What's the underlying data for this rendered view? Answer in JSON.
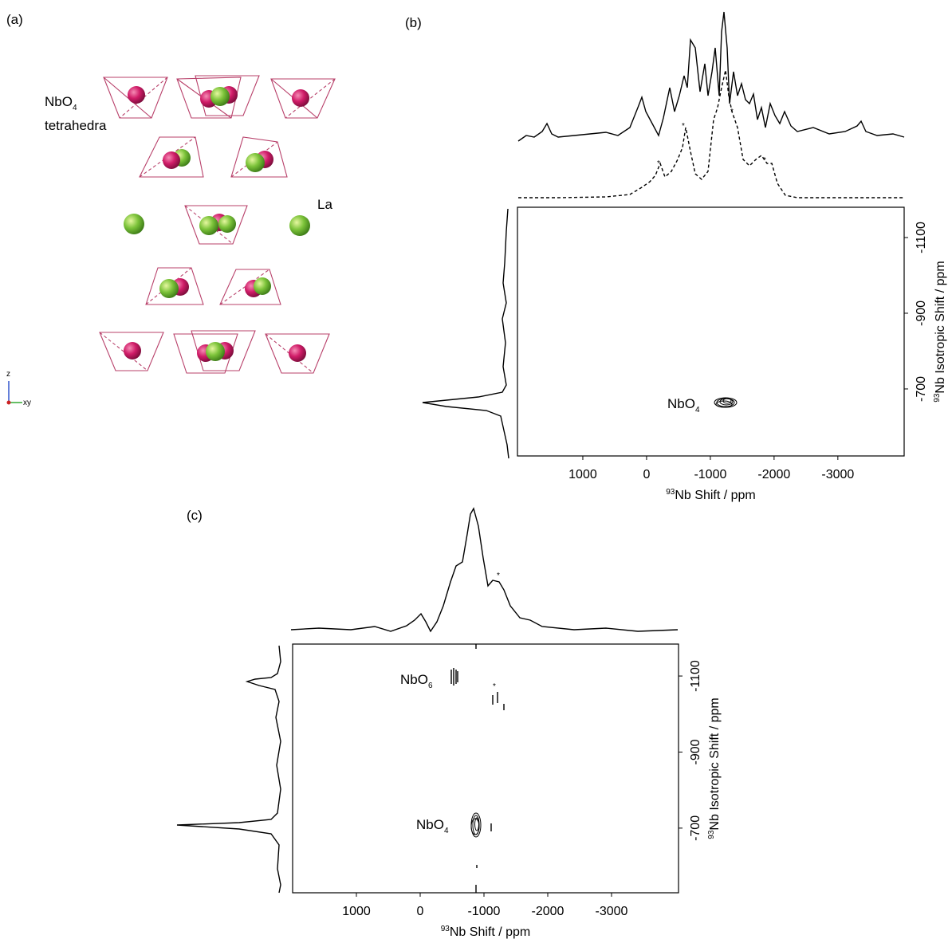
{
  "panel_a": {
    "label": "(a)",
    "tetra_label": {
      "text": "NbO",
      "sub": "4",
      "line2": "tetrahedra"
    },
    "la_label": "La",
    "axis_z": "z",
    "axis_xy": "xy"
  },
  "panel_b": {
    "label": "(b)",
    "x_label": {
      "sup": "93",
      "text": "Nb Shift / ppm"
    },
    "y_label": {
      "sup": "93",
      "text": "Nb Isotropic Shift / ppm"
    },
    "xlim": [
      2025,
      -4040
    ],
    "xticks": [
      1000,
      0,
      -1000,
      -2000,
      -3000
    ],
    "ylim": [
      -1180,
      -523
    ],
    "yticks": [
      -1100,
      -900,
      -700
    ],
    "peaks": [
      {
        "text": "NbO",
        "sub": "4"
      }
    ],
    "asterisks": [
      "*",
      "*",
      "*",
      "*"
    ]
  },
  "panel_c": {
    "label": "(c)",
    "x_label": {
      "sup": "93",
      "text": "Nb Shift / ppm"
    },
    "y_label": {
      "sup": "93",
      "text": "Nb Isotropic Shift / ppm"
    },
    "xlim": [
      2000,
      -4050
    ],
    "xticks": [
      1000,
      0,
      -1000,
      -2000,
      -3000
    ],
    "ylim": [
      -1184,
      -530
    ],
    "yticks": [
      -1100,
      -900,
      -700
    ],
    "peaks": [
      {
        "text": "NbO",
        "sub": "6"
      },
      {
        "text": "NbO",
        "sub": "4"
      }
    ],
    "asterisks": [
      "*",
      "*"
    ]
  }
}
